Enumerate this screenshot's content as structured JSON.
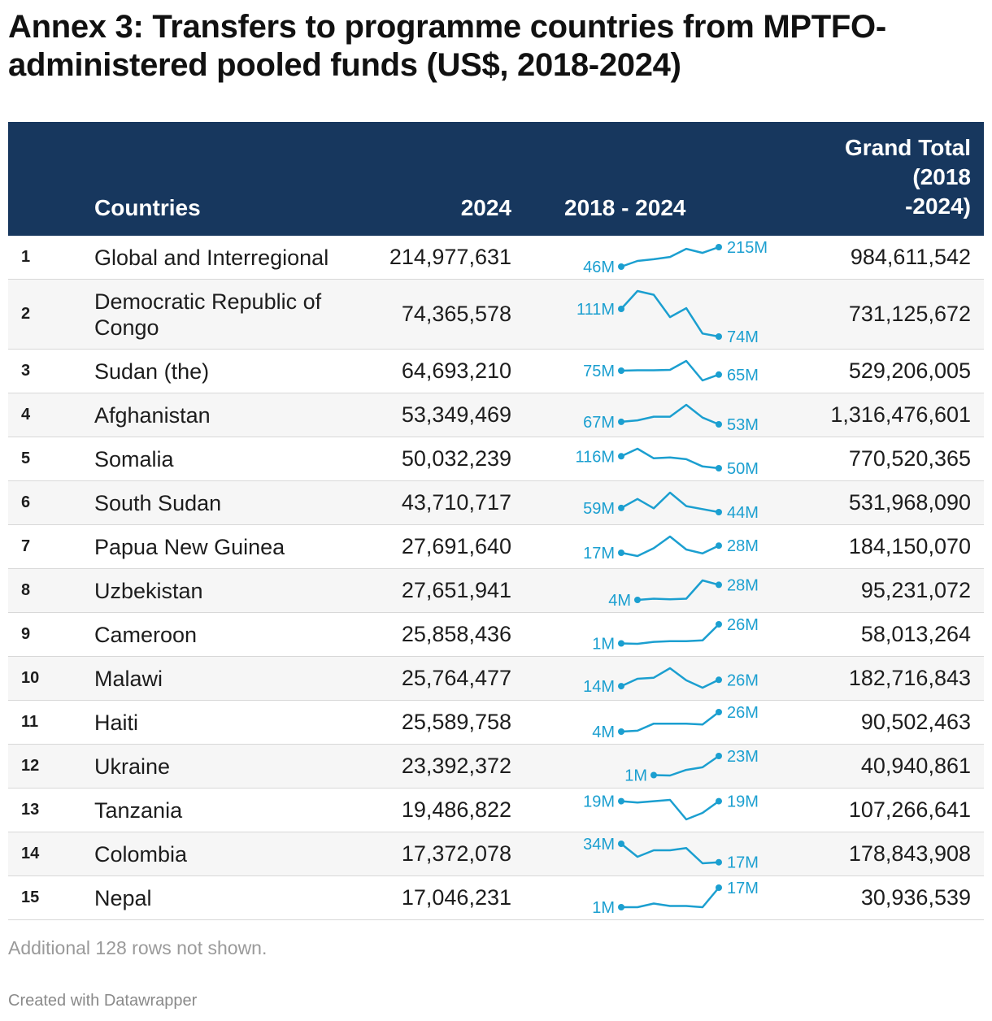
{
  "title": "Annex 3: Transfers to programme countries from MPTFO-administered pooled funds (US$, 2018-2024)",
  "header": {
    "countries": "Countries",
    "year": "2024",
    "range": "2018 - 2024",
    "total_lines": [
      "Grand Total",
      "(2018",
      "-2024)"
    ]
  },
  "footer": {
    "note": "Additional 128 rows not shown.",
    "credit": "Created with Datawrapper"
  },
  "colors": {
    "header_bg": "#17375e",
    "sparkline": "#1b9fd0",
    "row_alt": "#f6f6f6"
  },
  "chart_data": {
    "type": "table",
    "spark_years": [
      2018,
      2019,
      2020,
      2021,
      2022,
      2023,
      2024
    ],
    "rows": [
      {
        "rank": "1",
        "country": "Global and Interregional",
        "v2024": "214,977,631",
        "total": "984,611,542",
        "spark_start_label": "46M",
        "spark_end_label": "215M",
        "spark": [
          46,
          95,
          110,
          130,
          200,
          165,
          215
        ]
      },
      {
        "rank": "2",
        "country": "Democratic Republic of Congo",
        "v2024": "74,365,578",
        "total": "731,125,672",
        "spark_start_label": "111M",
        "spark_end_label": "74M",
        "spark": [
          111,
          135,
          130,
          100,
          112,
          78,
          74
        ]
      },
      {
        "rank": "3",
        "country": "Sudan (the)",
        "v2024": "64,693,210",
        "total": "529,206,005",
        "spark_start_label": "75M",
        "spark_end_label": "65M",
        "spark": [
          75,
          76,
          76,
          77,
          100,
          50,
          65
        ]
      },
      {
        "rank": "4",
        "country": "Afghanistan",
        "v2024": "53,349,469",
        "total": "1,316,476,601",
        "spark_start_label": "67M",
        "spark_end_label": "53M",
        "spark": [
          67,
          75,
          95,
          95,
          160,
          90,
          53
        ]
      },
      {
        "rank": "5",
        "country": "Somalia",
        "v2024": "50,032,239",
        "total": "770,520,365",
        "spark_start_label": "116M",
        "spark_end_label": "50M",
        "spark": [
          116,
          158,
          105,
          110,
          100,
          60,
          50
        ]
      },
      {
        "rank": "6",
        "country": "South Sudan",
        "v2024": "43,710,717",
        "total": "531,968,090",
        "spark_start_label": "59M",
        "spark_end_label": "44M",
        "spark": [
          59,
          92,
          58,
          115,
          66,
          55,
          44
        ]
      },
      {
        "rank": "7",
        "country": "Papua New Guinea",
        "v2024": "27,691,640",
        "total": "184,150,070",
        "spark_start_label": "17M",
        "spark_end_label": "28M",
        "spark": [
          17,
          12,
          24,
          42,
          22,
          16,
          28
        ]
      },
      {
        "rank": "8",
        "country": "Uzbekistan",
        "v2024": "27,651,941",
        "total": "95,231,072",
        "spark_start_label": "4M",
        "spark_end_label": "28M",
        "spark": [
          null,
          4,
          6,
          5,
          6,
          35,
          28
        ]
      },
      {
        "rank": "9",
        "country": "Cameroon",
        "v2024": "25,858,436",
        "total": "58,013,264",
        "spark_start_label": "1M",
        "spark_end_label": "26M",
        "spark": [
          1,
          0.5,
          3,
          4,
          4,
          5,
          26
        ]
      },
      {
        "rank": "10",
        "country": "Malawi",
        "v2024": "25,764,477",
        "total": "182,716,843",
        "spark_start_label": "14M",
        "spark_end_label": "26M",
        "spark": [
          14,
          28,
          30,
          48,
          25,
          11,
          26
        ]
      },
      {
        "rank": "11",
        "country": "Haiti",
        "v2024": "25,589,758",
        "total": "90,502,463",
        "spark_start_label": "4M",
        "spark_end_label": "26M",
        "spark": [
          4,
          5,
          13,
          13,
          13,
          12,
          26
        ]
      },
      {
        "rank": "12",
        "country": "Ukraine",
        "v2024": "23,392,372",
        "total": "40,940,861",
        "spark_start_label": "1M",
        "spark_end_label": "23M",
        "spark": [
          null,
          null,
          1,
          0.5,
          7,
          10,
          23
        ]
      },
      {
        "rank": "13",
        "country": "Tanzania",
        "v2024": "19,486,822",
        "total": "107,266,641",
        "spark_start_label": "19M",
        "spark_end_label": "19M",
        "spark": [
          19,
          18,
          19,
          20,
          5,
          10,
          19
        ]
      },
      {
        "rank": "14",
        "country": "Colombia",
        "v2024": "17,372,078",
        "total": "178,843,908",
        "spark_start_label": "34M",
        "spark_end_label": "17M",
        "spark": [
          34,
          22,
          28,
          28,
          30,
          16,
          17
        ]
      },
      {
        "rank": "15",
        "country": "Nepal",
        "v2024": "17,046,231",
        "total": "30,936,539",
        "spark_start_label": "1M",
        "spark_end_label": "17M",
        "spark": [
          1,
          1,
          4,
          2,
          2,
          1,
          17
        ]
      }
    ]
  }
}
